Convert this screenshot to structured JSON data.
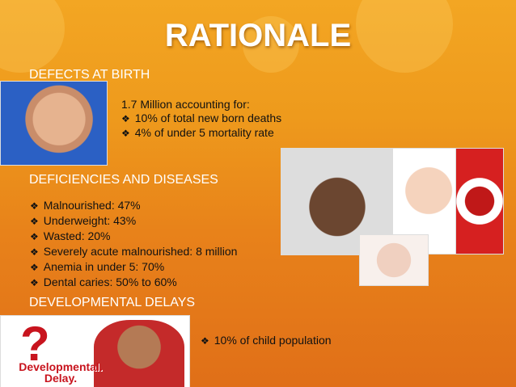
{
  "title": "RATIONALE",
  "sections": {
    "birth": {
      "heading": "DEFECTS AT BIRTH",
      "intro": "1.7 Million accounting for:",
      "bullets": [
        "10% of total new born deaths",
        "4% of under 5 mortality rate"
      ]
    },
    "deficiencies": {
      "heading": "DEFICIENCIES AND DISEASES",
      "bullets": [
        "Malnourished: 47%",
        "Underweight: 43%",
        "Wasted: 20%",
        "Severely acute malnourished: 8 million",
        "Anemia in under 5: 70%",
        "Dental caries: 50% to 60%"
      ]
    },
    "delays": {
      "heading": "DEVELOPMENTAL DELAYS",
      "bullets": [
        "10% of child population"
      ],
      "image_text": "Developmental. Delay."
    }
  }
}
